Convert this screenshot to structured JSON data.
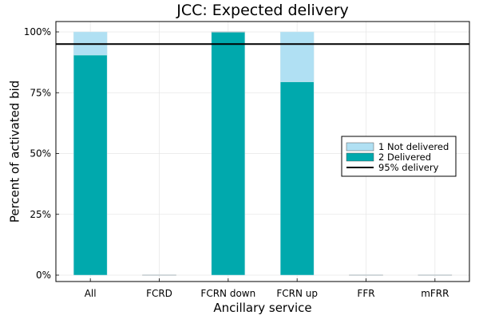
{
  "chart_data": {
    "type": "bar",
    "stacked": true,
    "title": "JCC: Expected delivery",
    "xlabel": "Ancillary service",
    "ylabel": "Percent of activated bid",
    "categories": [
      "All",
      "FCRD",
      "FCRN down",
      "FCRN up",
      "FFR",
      "mFRR"
    ],
    "series": [
      {
        "name": "2 Delivered",
        "color": "#00a9ad",
        "values": [
          90.5,
          0,
          100,
          79.5,
          0,
          0
        ]
      },
      {
        "name": "1 Not delivered",
        "color": "#b0e0f3",
        "values": [
          9.5,
          0,
          0,
          20.5,
          0,
          0
        ]
      }
    ],
    "reference_line": {
      "name": "95% delivery",
      "value": 95,
      "color": "#000000"
    },
    "ylim": [
      0,
      100
    ],
    "yticks": [
      0,
      25,
      50,
      75,
      100
    ],
    "ytick_labels": [
      "0%",
      "25%",
      "50%",
      "75%",
      "100%"
    ],
    "legend_order": [
      "1 Not delivered",
      "2 Delivered",
      "95% delivery"
    ],
    "legend_position": "right",
    "grid": true
  }
}
